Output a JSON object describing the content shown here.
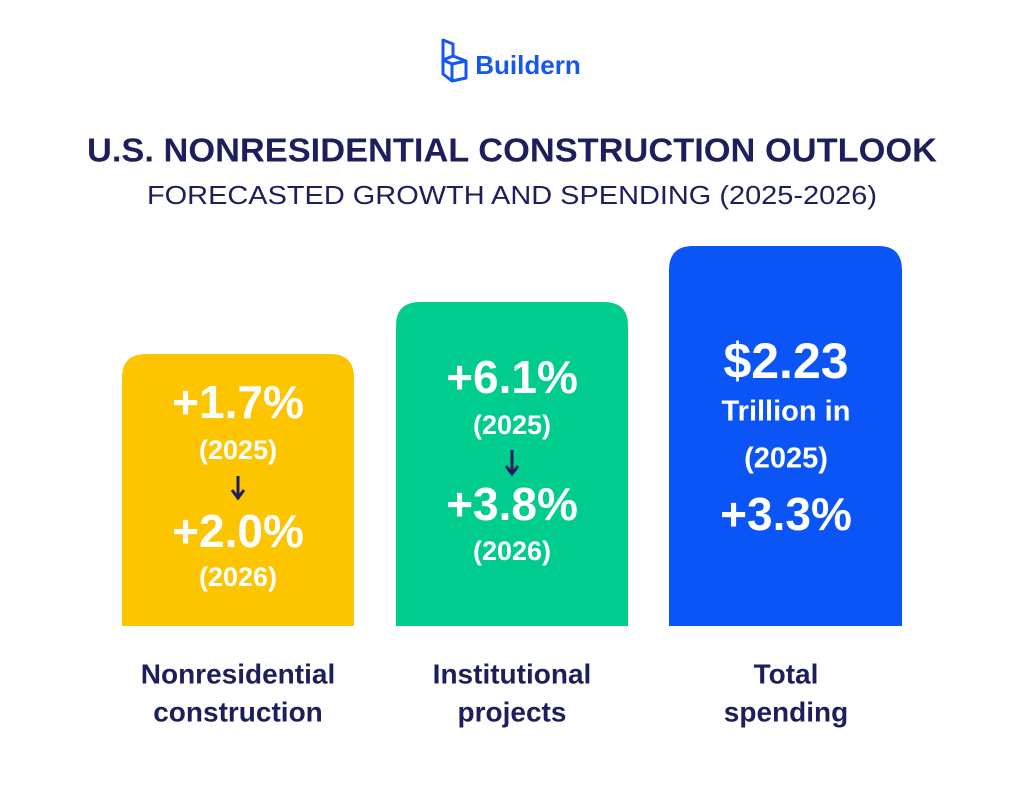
{
  "brand": "Buildern",
  "header": {
    "title": "U.S. NONRESIDENTIAL CONSTRUCTION OUTLOOK",
    "subtitle": "FORECASTED GROWTH AND SPENDING (2025-2026)"
  },
  "cards": [
    {
      "lines": [
        "+1.7%",
        "(2025)",
        "+2.0%",
        "(2026)"
      ],
      "label": [
        "Nonresidential",
        "construction"
      ]
    },
    {
      "lines": [
        "+6.1%",
        "(2025)",
        "+3.8%",
        "(2026)"
      ],
      "label": [
        "Institutional",
        "projects"
      ]
    },
    {
      "lines": [
        "$2.23",
        "Trillion in",
        "(2025)",
        "+3.3%"
      ],
      "label": [
        "Total",
        "spending"
      ]
    }
  ]
}
